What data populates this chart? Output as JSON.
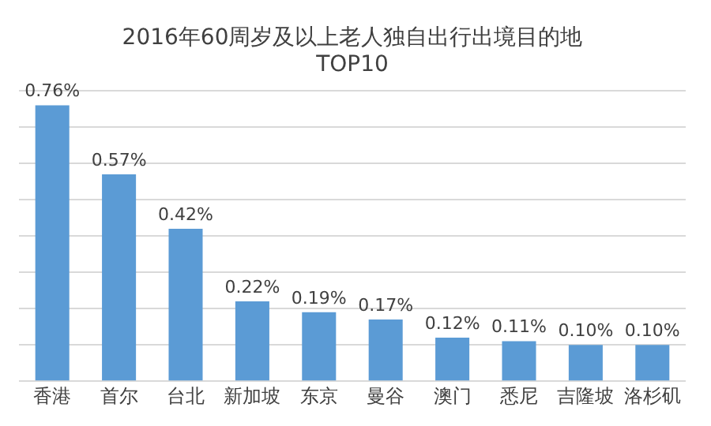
{
  "chart_data": {
    "type": "bar",
    "title": "2016年60周岁及以上老人独自出行出境目的地\nTOP10",
    "categories": [
      "香港",
      "首尔",
      "台北",
      "新加坡",
      "东京",
      "曼谷",
      "澳门",
      "悉尼",
      "吉隆坡",
      "洛杉矶"
    ],
    "values": [
      0.76,
      0.57,
      0.42,
      0.22,
      0.19,
      0.17,
      0.12,
      0.11,
      0.1,
      0.1
    ],
    "value_labels": [
      "0.76%",
      "0.57%",
      "0.42%",
      "0.22%",
      "0.19%",
      "0.17%",
      "0.12%",
      "0.11%",
      "0.10%",
      "0.10%"
    ],
    "color": "#5b9bd5",
    "ylim": [
      0,
      0.8
    ],
    "yticks": [
      {
        "value": 0,
        "label": null
      },
      {
        "value": 0.1,
        "label": null
      },
      {
        "value": 0.2,
        "label": null
      },
      {
        "value": 0.3,
        "label": null
      },
      {
        "value": 0.4,
        "label": null
      },
      {
        "value": 0.5,
        "label": null
      },
      {
        "value": 0.6,
        "label": null
      },
      {
        "value": 0.7,
        "label": null
      },
      {
        "value": 0.8,
        "label": null
      }
    ],
    "tick_labels": "x",
    "grid": "y"
  }
}
